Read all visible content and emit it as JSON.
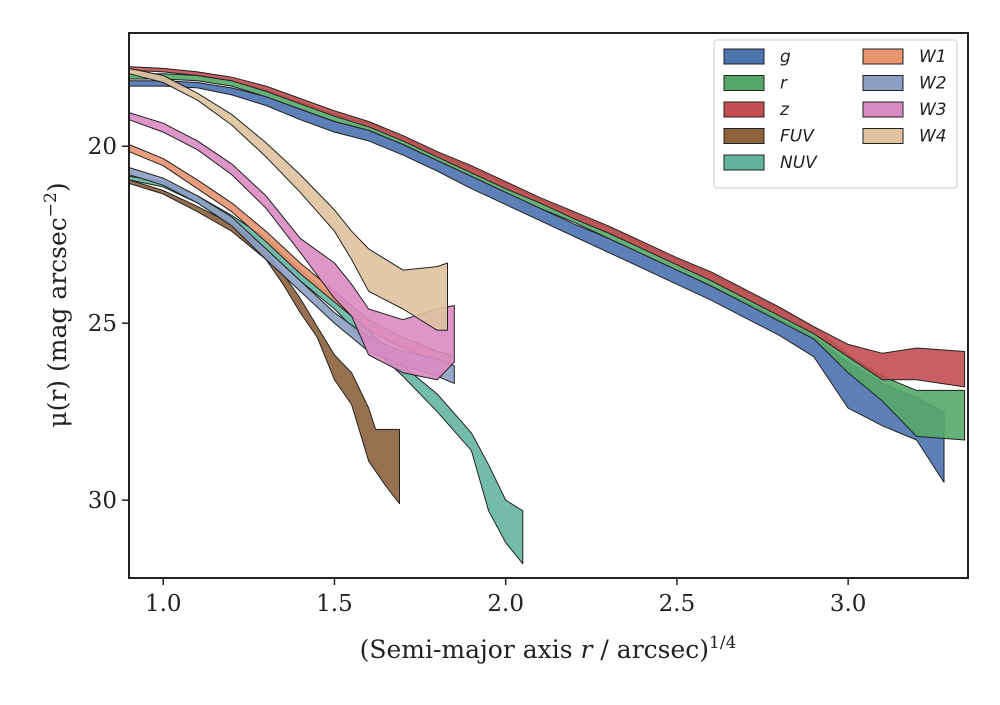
{
  "chart_data": {
    "type": "area",
    "xlabel": "(Semi-major axis r / arcsec)",
    "xlabel_var": "r",
    "xlabel_exp": "1/4",
    "ylabel": "μ(r) (mag arcsec",
    "ylabel_exp": "−2",
    "xlim": [
      0.9,
      3.35
    ],
    "ylim": [
      32.2,
      16.8
    ],
    "y_inverted": true,
    "xticks": [
      1.0,
      1.5,
      2.0,
      2.5,
      3.0
    ],
    "xtick_labels": [
      "1.0",
      "1.5",
      "2.0",
      "2.5",
      "3.0"
    ],
    "yticks": [
      20,
      25,
      30
    ],
    "ytick_labels": [
      "20",
      "25",
      "30"
    ],
    "grid": false,
    "legend_position": "top-right",
    "legend_columns": 2,
    "series": [
      {
        "name": "g",
        "color": "#4c72b0",
        "upper": [
          [
            0.9,
            18.15
          ],
          [
            1.0,
            18.15
          ],
          [
            1.1,
            18.2
          ],
          [
            1.2,
            18.35
          ],
          [
            1.3,
            18.6
          ],
          [
            1.4,
            18.95
          ],
          [
            1.5,
            19.3
          ],
          [
            1.6,
            19.55
          ],
          [
            1.7,
            19.95
          ],
          [
            1.8,
            20.4
          ],
          [
            1.9,
            20.85
          ],
          [
            2.0,
            21.3
          ],
          [
            2.1,
            21.75
          ],
          [
            2.2,
            22.2
          ],
          [
            2.3,
            22.6
          ],
          [
            2.4,
            23.05
          ],
          [
            2.5,
            23.5
          ],
          [
            2.6,
            23.95
          ],
          [
            2.7,
            24.4
          ],
          [
            2.8,
            24.9
          ],
          [
            2.9,
            25.4
          ],
          [
            3.0,
            26.1
          ],
          [
            3.1,
            26.7
          ],
          [
            3.2,
            27.1
          ],
          [
            3.28,
            27.5
          ]
        ],
        "lower": [
          [
            0.9,
            18.3
          ],
          [
            1.0,
            18.3
          ],
          [
            1.1,
            18.35
          ],
          [
            1.2,
            18.55
          ],
          [
            1.3,
            18.85
          ],
          [
            1.4,
            19.25
          ],
          [
            1.5,
            19.6
          ],
          [
            1.6,
            19.85
          ],
          [
            1.7,
            20.25
          ],
          [
            1.8,
            20.7
          ],
          [
            1.9,
            21.2
          ],
          [
            2.0,
            21.65
          ],
          [
            2.1,
            22.1
          ],
          [
            2.2,
            22.55
          ],
          [
            2.3,
            23.0
          ],
          [
            2.4,
            23.45
          ],
          [
            2.5,
            23.9
          ],
          [
            2.6,
            24.35
          ],
          [
            2.7,
            24.85
          ],
          [
            2.8,
            25.35
          ],
          [
            2.9,
            25.95
          ],
          [
            3.0,
            27.4
          ],
          [
            3.1,
            27.9
          ],
          [
            3.2,
            28.3
          ],
          [
            3.28,
            29.5
          ]
        ]
      },
      {
        "name": "r",
        "color": "#55a868",
        "upper": [
          [
            0.9,
            17.95
          ],
          [
            1.0,
            17.95
          ],
          [
            1.1,
            18.0
          ],
          [
            1.2,
            18.15
          ],
          [
            1.3,
            18.4
          ],
          [
            1.4,
            18.75
          ],
          [
            1.5,
            19.1
          ],
          [
            1.6,
            19.35
          ],
          [
            1.7,
            19.75
          ],
          [
            1.8,
            20.2
          ],
          [
            1.9,
            20.6
          ],
          [
            2.0,
            21.05
          ],
          [
            2.1,
            21.5
          ],
          [
            2.2,
            21.9
          ],
          [
            2.3,
            22.3
          ],
          [
            2.4,
            22.75
          ],
          [
            2.5,
            23.2
          ],
          [
            2.6,
            23.6
          ],
          [
            2.7,
            24.1
          ],
          [
            2.8,
            24.6
          ],
          [
            2.9,
            25.1
          ],
          [
            3.0,
            25.9
          ],
          [
            3.1,
            26.5
          ],
          [
            3.2,
            26.9
          ],
          [
            3.34,
            26.9
          ]
        ],
        "lower": [
          [
            0.9,
            18.1
          ],
          [
            1.0,
            18.1
          ],
          [
            1.1,
            18.15
          ],
          [
            1.2,
            18.3
          ],
          [
            1.3,
            18.6
          ],
          [
            1.4,
            18.95
          ],
          [
            1.5,
            19.3
          ],
          [
            1.6,
            19.55
          ],
          [
            1.7,
            19.95
          ],
          [
            1.8,
            20.4
          ],
          [
            1.9,
            20.85
          ],
          [
            2.0,
            21.3
          ],
          [
            2.1,
            21.75
          ],
          [
            2.2,
            22.15
          ],
          [
            2.3,
            22.6
          ],
          [
            2.4,
            23.05
          ],
          [
            2.5,
            23.5
          ],
          [
            2.6,
            23.95
          ],
          [
            2.7,
            24.45
          ],
          [
            2.8,
            24.95
          ],
          [
            2.9,
            25.45
          ],
          [
            3.0,
            26.4
          ],
          [
            3.1,
            27.2
          ],
          [
            3.2,
            28.2
          ],
          [
            3.34,
            28.3
          ]
        ]
      },
      {
        "name": "z",
        "color": "#c44e52",
        "upper": [
          [
            0.9,
            17.75
          ],
          [
            1.0,
            17.8
          ],
          [
            1.1,
            17.9
          ],
          [
            1.2,
            18.05
          ],
          [
            1.3,
            18.3
          ],
          [
            1.4,
            18.65
          ],
          [
            1.5,
            19.0
          ],
          [
            1.6,
            19.3
          ],
          [
            1.7,
            19.7
          ],
          [
            1.8,
            20.15
          ],
          [
            1.9,
            20.55
          ],
          [
            2.0,
            21.0
          ],
          [
            2.1,
            21.45
          ],
          [
            2.2,
            21.85
          ],
          [
            2.3,
            22.25
          ],
          [
            2.4,
            22.7
          ],
          [
            2.5,
            23.15
          ],
          [
            2.6,
            23.55
          ],
          [
            2.7,
            24.05
          ],
          [
            2.8,
            24.55
          ],
          [
            2.9,
            25.1
          ],
          [
            3.0,
            25.6
          ],
          [
            3.1,
            25.85
          ],
          [
            3.2,
            25.7
          ],
          [
            3.34,
            25.8
          ]
        ],
        "lower": [
          [
            0.9,
            17.85
          ],
          [
            1.0,
            17.9
          ],
          [
            1.1,
            18.0
          ],
          [
            1.2,
            18.15
          ],
          [
            1.3,
            18.45
          ],
          [
            1.4,
            18.8
          ],
          [
            1.5,
            19.15
          ],
          [
            1.6,
            19.45
          ],
          [
            1.7,
            19.85
          ],
          [
            1.8,
            20.3
          ],
          [
            1.9,
            20.75
          ],
          [
            2.0,
            21.2
          ],
          [
            2.1,
            21.6
          ],
          [
            2.2,
            22.05
          ],
          [
            2.3,
            22.45
          ],
          [
            2.4,
            22.9
          ],
          [
            2.5,
            23.35
          ],
          [
            2.6,
            23.8
          ],
          [
            2.7,
            24.3
          ],
          [
            2.8,
            24.8
          ],
          [
            2.9,
            25.3
          ],
          [
            3.0,
            25.95
          ],
          [
            3.1,
            26.6
          ],
          [
            3.2,
            26.6
          ],
          [
            3.34,
            26.8
          ]
        ]
      },
      {
        "name": "FUV",
        "color": "#8c613c",
        "upper": [
          [
            0.9,
            20.95
          ],
          [
            1.0,
            21.25
          ],
          [
            1.1,
            21.7
          ],
          [
            1.2,
            22.2
          ],
          [
            1.3,
            23.0
          ],
          [
            1.35,
            23.6
          ],
          [
            1.4,
            24.3
          ],
          [
            1.45,
            25.1
          ],
          [
            1.5,
            25.9
          ],
          [
            1.55,
            26.4
          ],
          [
            1.6,
            27.4
          ],
          [
            1.62,
            28.0
          ],
          [
            1.69,
            28.0
          ]
        ],
        "lower": [
          [
            0.9,
            21.05
          ],
          [
            1.0,
            21.35
          ],
          [
            1.1,
            21.85
          ],
          [
            1.2,
            22.4
          ],
          [
            1.3,
            23.2
          ],
          [
            1.35,
            23.9
          ],
          [
            1.4,
            24.7
          ],
          [
            1.45,
            25.4
          ],
          [
            1.5,
            26.6
          ],
          [
            1.55,
            27.3
          ],
          [
            1.6,
            28.9
          ],
          [
            1.65,
            29.6
          ],
          [
            1.69,
            30.1
          ]
        ]
      },
      {
        "name": "NUV",
        "color": "#64b5a0",
        "upper": [
          [
            0.9,
            20.85
          ],
          [
            1.0,
            21.0
          ],
          [
            1.1,
            21.4
          ],
          [
            1.2,
            21.95
          ],
          [
            1.3,
            22.6
          ],
          [
            1.4,
            23.5
          ],
          [
            1.5,
            24.3
          ],
          [
            1.6,
            25.2
          ],
          [
            1.7,
            26.2
          ],
          [
            1.8,
            27.0
          ],
          [
            1.9,
            28.1
          ],
          [
            1.95,
            29.0
          ],
          [
            2.0,
            30.0
          ],
          [
            2.05,
            30.3
          ]
        ],
        "lower": [
          [
            0.9,
            20.95
          ],
          [
            1.0,
            21.15
          ],
          [
            1.1,
            21.6
          ],
          [
            1.2,
            22.2
          ],
          [
            1.3,
            22.9
          ],
          [
            1.4,
            23.8
          ],
          [
            1.5,
            24.6
          ],
          [
            1.6,
            25.6
          ],
          [
            1.7,
            26.5
          ],
          [
            1.8,
            27.5
          ],
          [
            1.9,
            28.6
          ],
          [
            1.95,
            30.3
          ],
          [
            2.0,
            31.2
          ],
          [
            2.05,
            31.8
          ]
        ]
      },
      {
        "name": "W1",
        "color": "#e8946f",
        "upper": [
          [
            0.9,
            19.95
          ],
          [
            1.0,
            20.35
          ],
          [
            1.1,
            20.95
          ],
          [
            1.2,
            21.6
          ],
          [
            1.3,
            22.4
          ],
          [
            1.4,
            23.3
          ],
          [
            1.5,
            24.1
          ],
          [
            1.6,
            24.9
          ],
          [
            1.7,
            25.4
          ],
          [
            1.8,
            25.8
          ],
          [
            1.84,
            25.9
          ]
        ],
        "lower": [
          [
            0.9,
            20.15
          ],
          [
            1.0,
            20.55
          ],
          [
            1.1,
            21.2
          ],
          [
            1.2,
            21.85
          ],
          [
            1.3,
            22.7
          ],
          [
            1.4,
            23.6
          ],
          [
            1.5,
            24.4
          ],
          [
            1.6,
            25.2
          ],
          [
            1.7,
            25.7
          ],
          [
            1.8,
            26.1
          ],
          [
            1.84,
            26.2
          ]
        ]
      },
      {
        "name": "W2",
        "color": "#8c9ec4",
        "upper": [
          [
            0.9,
            20.6
          ],
          [
            1.0,
            20.9
          ],
          [
            1.1,
            21.4
          ],
          [
            1.2,
            22.0
          ],
          [
            1.3,
            22.9
          ],
          [
            1.4,
            23.8
          ],
          [
            1.5,
            24.7
          ],
          [
            1.6,
            25.4
          ],
          [
            1.7,
            25.8
          ],
          [
            1.8,
            26.0
          ],
          [
            1.85,
            26.2
          ]
        ],
        "lower": [
          [
            0.9,
            20.8
          ],
          [
            1.0,
            21.1
          ],
          [
            1.1,
            21.6
          ],
          [
            1.2,
            22.25
          ],
          [
            1.3,
            23.2
          ],
          [
            1.4,
            24.1
          ],
          [
            1.5,
            25.0
          ],
          [
            1.6,
            25.8
          ],
          [
            1.7,
            26.2
          ],
          [
            1.8,
            26.5
          ],
          [
            1.85,
            26.7
          ]
        ]
      },
      {
        "name": "W3",
        "color": "#da8bc3",
        "upper": [
          [
            0.9,
            19.05
          ],
          [
            1.0,
            19.35
          ],
          [
            1.1,
            19.85
          ],
          [
            1.2,
            20.5
          ],
          [
            1.3,
            21.4
          ],
          [
            1.4,
            22.6
          ],
          [
            1.5,
            23.3
          ],
          [
            1.55,
            23.9
          ],
          [
            1.6,
            24.6
          ],
          [
            1.7,
            24.9
          ],
          [
            1.8,
            24.6
          ],
          [
            1.85,
            24.5
          ]
        ],
        "lower": [
          [
            0.9,
            19.25
          ],
          [
            1.0,
            19.6
          ],
          [
            1.1,
            20.1
          ],
          [
            1.2,
            20.8
          ],
          [
            1.3,
            21.75
          ],
          [
            1.4,
            23.0
          ],
          [
            1.5,
            24.3
          ],
          [
            1.55,
            24.8
          ],
          [
            1.6,
            25.9
          ],
          [
            1.7,
            26.4
          ],
          [
            1.8,
            26.6
          ],
          [
            1.85,
            26.1
          ]
        ]
      },
      {
        "name": "W4",
        "color": "#dfc29e",
        "upper": [
          [
            0.9,
            17.8
          ],
          [
            1.0,
            18.0
          ],
          [
            1.1,
            18.5
          ],
          [
            1.2,
            19.1
          ],
          [
            1.3,
            19.9
          ],
          [
            1.4,
            20.8
          ],
          [
            1.5,
            21.8
          ],
          [
            1.55,
            22.4
          ],
          [
            1.6,
            22.9
          ],
          [
            1.7,
            23.5
          ],
          [
            1.8,
            23.4
          ],
          [
            1.83,
            23.3
          ]
        ],
        "lower": [
          [
            0.9,
            17.95
          ],
          [
            1.0,
            18.2
          ],
          [
            1.1,
            18.7
          ],
          [
            1.2,
            19.4
          ],
          [
            1.3,
            20.3
          ],
          [
            1.4,
            21.3
          ],
          [
            1.5,
            22.4
          ],
          [
            1.55,
            23.2
          ],
          [
            1.6,
            24.1
          ],
          [
            1.7,
            24.6
          ],
          [
            1.8,
            25.2
          ],
          [
            1.83,
            25.2
          ]
        ]
      }
    ]
  }
}
